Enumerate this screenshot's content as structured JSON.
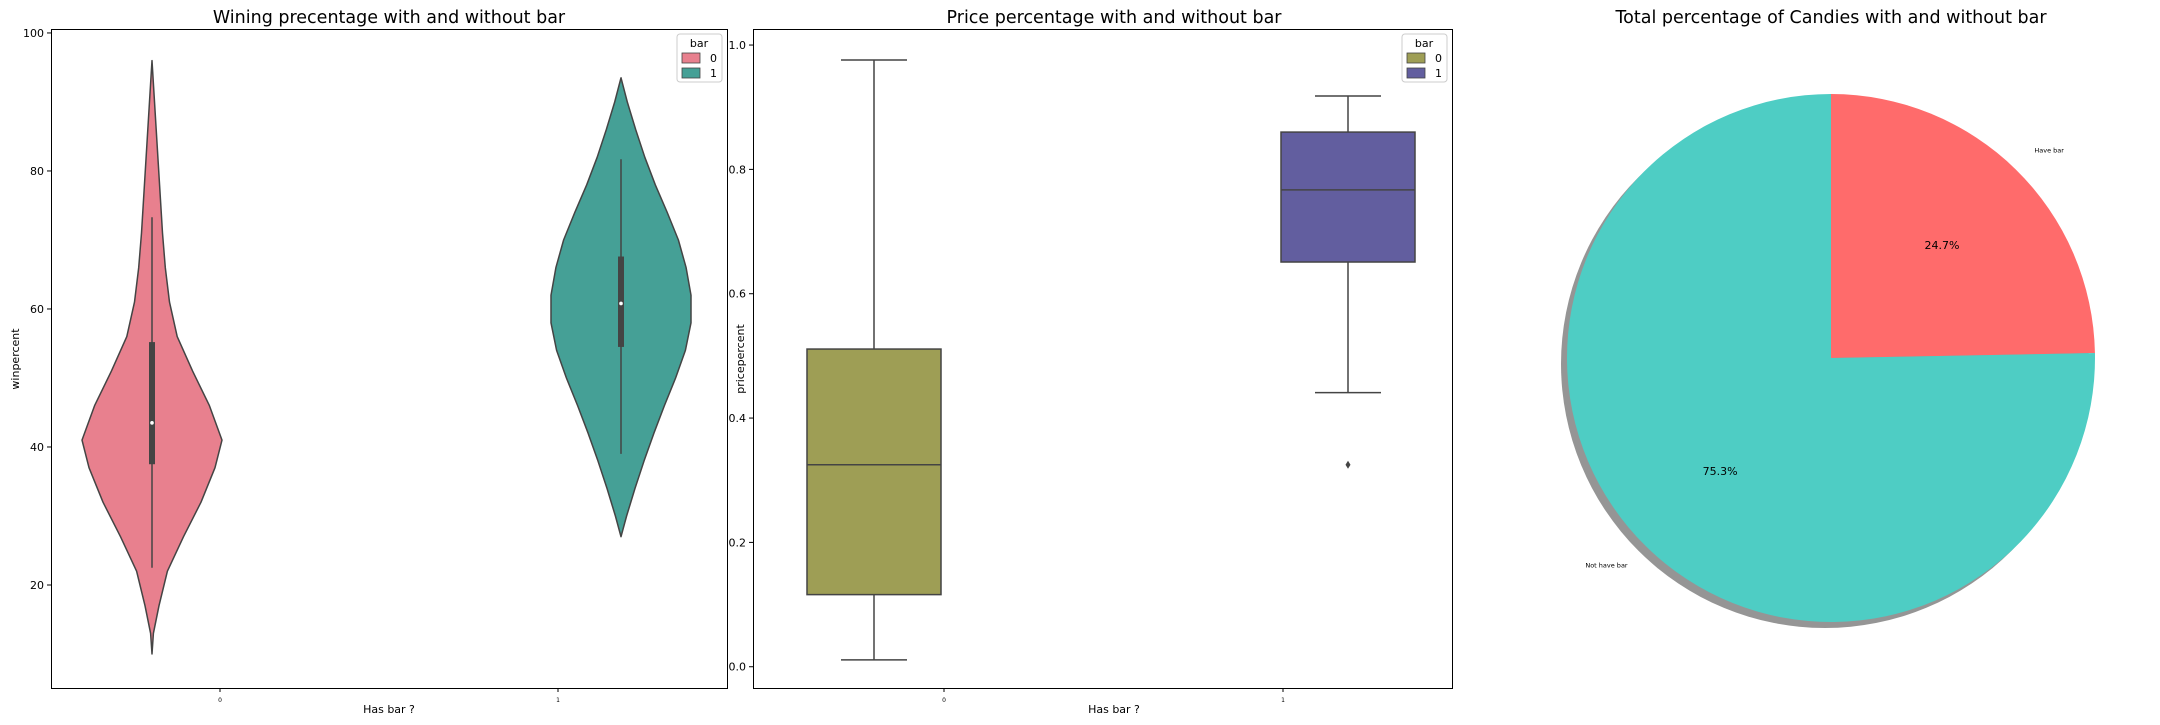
{
  "chart_data": [
    {
      "type": "violin",
      "title": "Wining precentage with and without bar",
      "xlabel": "Has bar ?",
      "ylabel": "winpercent",
      "categories": [
        "0",
        "1"
      ],
      "ylim": [
        5,
        100.5
      ],
      "yticks": [
        20,
        40,
        60,
        80,
        100
      ],
      "legend": {
        "title": "bar",
        "position": "top-right",
        "entries": [
          "0",
          "1"
        ]
      },
      "series": [
        {
          "category": "0",
          "legend": "0",
          "color": "#e8808e",
          "min": 10.0,
          "q1": 37.5,
          "median": 43.5,
          "q3": 55.2,
          "max": 96.0,
          "whisker_low": 22.5,
          "whisker_high": 73.3,
          "density": [
            [
              10.0,
              0.0
            ],
            [
              13.0,
              0.02
            ],
            [
              17.0,
              0.1
            ],
            [
              22.0,
              0.22
            ],
            [
              27.0,
              0.45
            ],
            [
              32.0,
              0.7
            ],
            [
              37.0,
              0.9
            ],
            [
              41.0,
              1.0
            ],
            [
              46.0,
              0.82
            ],
            [
              51.0,
              0.58
            ],
            [
              56.0,
              0.36
            ],
            [
              61.0,
              0.25
            ],
            [
              66.0,
              0.19
            ],
            [
              71.0,
              0.15
            ],
            [
              76.0,
              0.12
            ],
            [
              81.0,
              0.09
            ],
            [
              86.0,
              0.06
            ],
            [
              91.0,
              0.03
            ],
            [
              96.0,
              0.0
            ]
          ]
        },
        {
          "category": "1",
          "legend": "1",
          "color": "#45a096",
          "min": 27.0,
          "q1": 54.5,
          "median": 60.8,
          "q3": 67.6,
          "max": 93.5,
          "whisker_low": 39.0,
          "whisker_high": 81.7,
          "density": [
            [
              27.0,
              0.0
            ],
            [
              30.0,
              0.08
            ],
            [
              34.0,
              0.2
            ],
            [
              38.0,
              0.33
            ],
            [
              42.0,
              0.47
            ],
            [
              46.0,
              0.62
            ],
            [
              50.0,
              0.78
            ],
            [
              54.0,
              0.92
            ],
            [
              58.0,
              1.0
            ],
            [
              62.0,
              1.0
            ],
            [
              66.0,
              0.93
            ],
            [
              70.0,
              0.82
            ],
            [
              74.0,
              0.66
            ],
            [
              78.0,
              0.49
            ],
            [
              82.0,
              0.34
            ],
            [
              86.0,
              0.21
            ],
            [
              90.0,
              0.09
            ],
            [
              93.5,
              0.0
            ]
          ]
        }
      ]
    },
    {
      "type": "box",
      "title": "Price percentage with and without bar",
      "xlabel": "Has bar ?",
      "ylabel": "pricepercent",
      "categories": [
        "0",
        "1"
      ],
      "ylim": [
        -0.035,
        1.025
      ],
      "yticks": [
        0.0,
        0.2,
        0.4,
        0.6,
        0.8,
        1.0
      ],
      "legend": {
        "title": "bar",
        "position": "top-right",
        "entries": [
          "0",
          "1"
        ]
      },
      "series": [
        {
          "category": "0",
          "legend": "0",
          "color": "#9e9e55",
          "whisker_low": 0.011,
          "q1": 0.116,
          "median": 0.325,
          "q3": 0.511,
          "whisker_high": 0.976,
          "outliers": []
        },
        {
          "category": "1",
          "legend": "1",
          "color": "#625e9f",
          "whisker_low": 0.441,
          "q1": 0.651,
          "median": 0.767,
          "q3": 0.86,
          "whisker_high": 0.918,
          "outliers": [
            0.325
          ]
        }
      ]
    },
    {
      "type": "pie",
      "title": "Total percentage of Candies with and without bar",
      "slices": [
        {
          "label": "Have bar",
          "value": 24.7,
          "pct_label": "24.7%",
          "color": "#ff6b6b"
        },
        {
          "label": "Not have bar",
          "value": 75.3,
          "pct_label": "75.3%",
          "color": "#4ecdc4"
        }
      ],
      "startangle": 90,
      "shadow": true
    }
  ]
}
